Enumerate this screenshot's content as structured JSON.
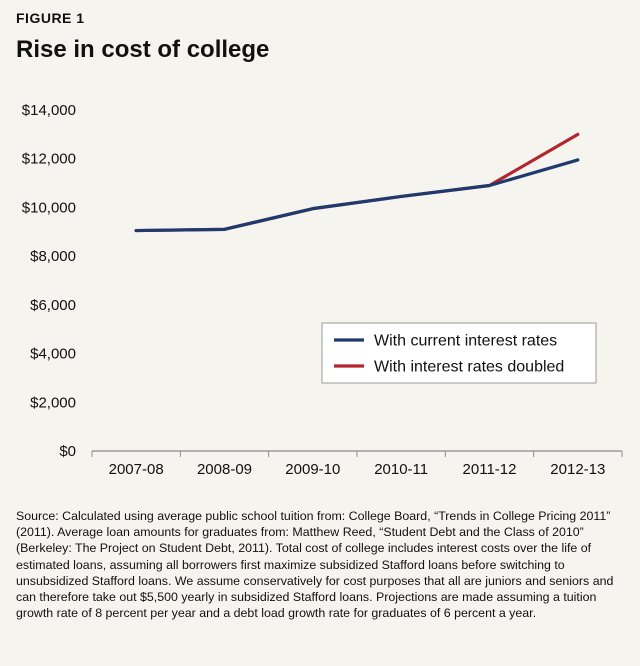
{
  "figure_label": "FIGURE 1",
  "title": "Rise in cost of college",
  "source": "Source: Calculated using average public school tuition from: College Board, “Trends in College Pricing 2011” (2011). Average loan amounts for graduates from: Matthew Reed, “Student Debt and the Class of 2010” (Berkeley: The Project on Student Debt, 2011). Total cost of college includes interest costs over the life of estimated loans, assuming all borrowers first maximize subsidized Stafford loans before switching to unsubsidized Stafford loans. We assume conservatively for cost purposes that all are juniors and seniors and can therefore take out $5,500 yearly in subsidized Stafford loans. Projections are made assuming a tuition growth rate of 8 percent per year and a debt load growth rate for graduates of 6 percent a year.",
  "chart_data": {
    "type": "line",
    "categories": [
      "2007-08",
      "2008-09",
      "2009-10",
      "2010-11",
      "2011-12",
      "2012-13"
    ],
    "series": [
      {
        "name": "With current interest rates",
        "color": "#1f3a6e",
        "values": [
          9050,
          9100,
          9950,
          10450,
          10900,
          11950
        ]
      },
      {
        "name": "With interest rates doubled",
        "color": "#b3262e",
        "values": [
          9050,
          9100,
          9950,
          10450,
          10900,
          13000
        ]
      }
    ],
    "ylim": [
      0,
      14000
    ],
    "yticks": [
      0,
      2000,
      4000,
      6000,
      8000,
      10000,
      12000,
      14000
    ],
    "ytick_labels": [
      "$0",
      "$2,000",
      "$4,000",
      "$6,000",
      "$8,000",
      "$10,000",
      "$12,000",
      "$14,000"
    ],
    "grid": false,
    "legend_position": "bottom-right"
  }
}
